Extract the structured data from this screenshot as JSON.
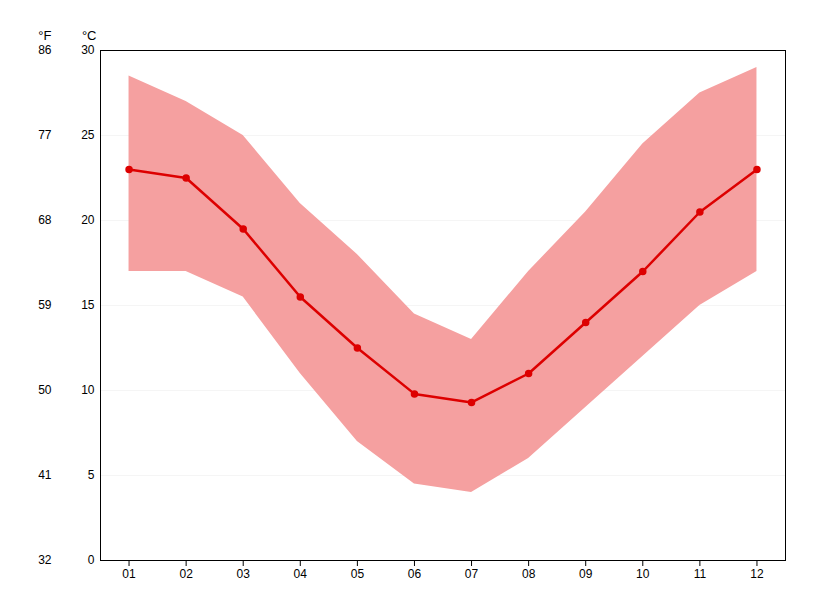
{
  "chart_data": {
    "type": "line",
    "x": [
      1,
      2,
      3,
      4,
      5,
      6,
      7,
      8,
      9,
      10,
      11,
      12
    ],
    "xlim": [
      0.5,
      12.5
    ],
    "xticks": [
      {
        "value": 1,
        "label": "01"
      },
      {
        "value": 2,
        "label": "02"
      },
      {
        "value": 3,
        "label": "03"
      },
      {
        "value": 4,
        "label": "04"
      },
      {
        "value": 5,
        "label": "05"
      },
      {
        "value": 6,
        "label": "06"
      },
      {
        "value": 7,
        "label": "07"
      },
      {
        "value": 8,
        "label": "08"
      },
      {
        "value": 9,
        "label": "09"
      },
      {
        "value": 10,
        "label": "10"
      },
      {
        "value": 11,
        "label": "11"
      },
      {
        "value": 12,
        "label": "12"
      }
    ],
    "ylabel": "°C",
    "ylim": [
      0,
      30
    ],
    "yticks": [
      0,
      5,
      10,
      15,
      20,
      25,
      30
    ],
    "y2label": "°F",
    "y2lim": [
      32,
      86
    ],
    "y2ticks": [
      32,
      41,
      50,
      59,
      68,
      77,
      86
    ],
    "grid": true,
    "series": [
      {
        "type": "area",
        "color": "#f5a0a0",
        "low": [
          17.0,
          17.0,
          15.5,
          11.0,
          7.0,
          4.5,
          4.0,
          6.0,
          9.0,
          12.0,
          15.0,
          17.0
        ],
        "high": [
          28.5,
          27.0,
          25.0,
          21.0,
          18.0,
          14.5,
          13.0,
          17.0,
          20.5,
          24.5,
          27.5,
          29.0
        ]
      },
      {
        "type": "line",
        "color": "#dd0000",
        "marker": "circle",
        "values": [
          23.0,
          22.5,
          19.5,
          15.5,
          12.5,
          9.8,
          9.3,
          11.0,
          14.0,
          17.0,
          20.5,
          23.0
        ]
      }
    ]
  }
}
